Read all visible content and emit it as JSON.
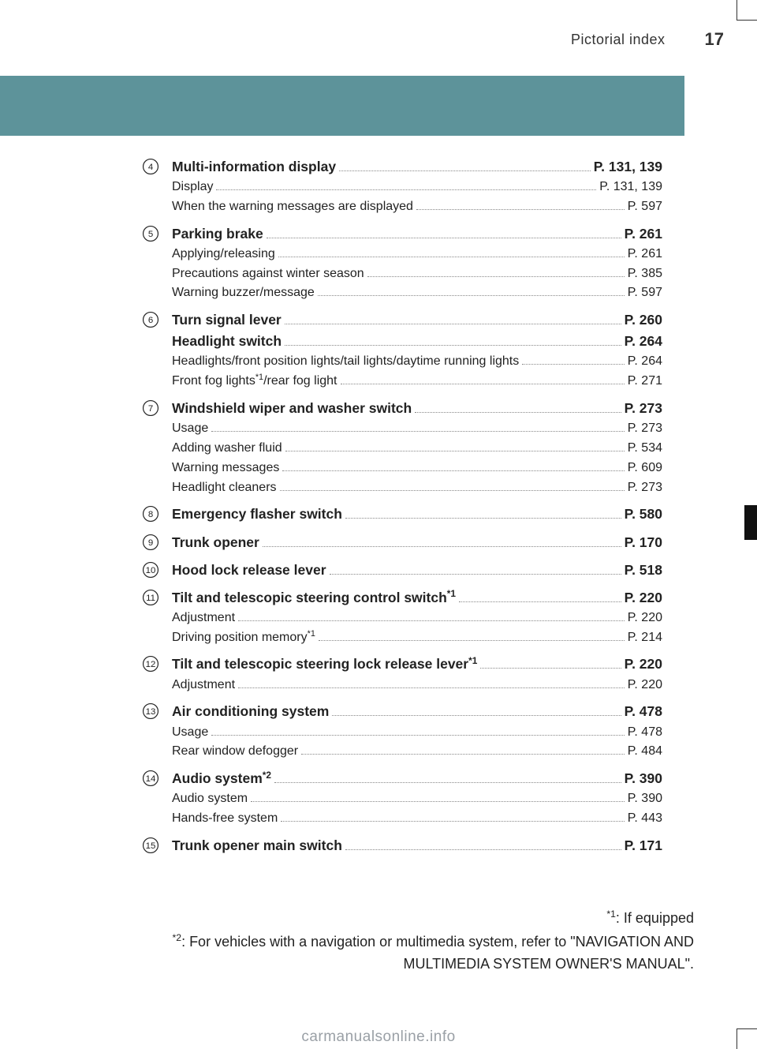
{
  "colors": {
    "teal": "#5d939a",
    "text": "#222222",
    "leader": "#888888",
    "watermark": "#9aa0a6",
    "black": "#111111"
  },
  "header": {
    "section": "Pictorial index",
    "page": "17"
  },
  "items": [
    {
      "num": 4,
      "lines": [
        {
          "main": true,
          "label": "Multi-information display ",
          "page": "P. 131, 139"
        },
        {
          "label": "Display ",
          "page": "P. 131, 139"
        },
        {
          "label": "When the warning messages are displayed",
          "page": " P. 597"
        }
      ]
    },
    {
      "num": 5,
      "lines": [
        {
          "main": true,
          "label": "Parking brake ",
          "page": " P. 261"
        },
        {
          "label": "Applying/releasing ",
          "page": " P. 261"
        },
        {
          "label": "Precautions against winter season ",
          "page": " P. 385"
        },
        {
          "label": "Warning buzzer/message",
          "page": " P. 597"
        }
      ]
    },
    {
      "num": 6,
      "lines": [
        {
          "main": true,
          "label": "Turn signal lever ",
          "page": "P. 260"
        },
        {
          "main": true,
          "label": "Headlight switch",
          "page": "P. 264"
        },
        {
          "label": "Headlights/front position lights/tail lights/daytime running lights ",
          "page": " P. 264"
        },
        {
          "label": "Front fog lights",
          "sup_after_label": "*1",
          "label2": "/rear fog light ",
          "page": " P. 271"
        }
      ]
    },
    {
      "num": 7,
      "lines": [
        {
          "main": true,
          "label": "Windshield wiper and washer switch ",
          "page": "P. 273"
        },
        {
          "label": "Usage ",
          "page": "P. 273"
        },
        {
          "label": "Adding washer fluid ",
          "page": " P. 534"
        },
        {
          "label": "Warning messages ",
          "page": " P. 609"
        },
        {
          "label": "Headlight cleaners ",
          "page": "P. 273"
        }
      ]
    },
    {
      "num": 8,
      "lines": [
        {
          "main": true,
          "label": "Emergency flasher switch",
          "page": " P. 580"
        }
      ]
    },
    {
      "num": 9,
      "lines": [
        {
          "main": true,
          "label": "Trunk opener ",
          "page": " P. 170"
        }
      ]
    },
    {
      "num": 10,
      "lines": [
        {
          "main": true,
          "label": "Hood lock release lever",
          "page": " P. 518"
        }
      ]
    },
    {
      "num": 11,
      "lines": [
        {
          "main": true,
          "label": "Tilt and telescopic steering control switch",
          "sup_after_label": "*1",
          "label2": " ",
          "page": "P. 220"
        },
        {
          "label": "Adjustment ",
          "page": " P. 220"
        },
        {
          "label": "Driving position memory",
          "sup_after_label": "*1",
          "label2": " ",
          "page": " P. 214"
        }
      ]
    },
    {
      "num": 12,
      "lines": [
        {
          "main": true,
          "label": "Tilt and telescopic steering lock release lever",
          "sup_after_label": "*1",
          "label2": " ",
          "page": "P. 220"
        },
        {
          "label": "Adjustment ",
          "page": " P. 220"
        }
      ]
    },
    {
      "num": 13,
      "lines": [
        {
          "main": true,
          "label": "Air conditioning system ",
          "page": "P. 478"
        },
        {
          "label": "Usage ",
          "page": " P. 478"
        },
        {
          "label": "Rear window defogger ",
          "page": " P. 484"
        }
      ]
    },
    {
      "num": 14,
      "lines": [
        {
          "main": true,
          "label": "Audio system",
          "sup_after_label": "*2",
          "label2": " ",
          "page": "P. 390"
        },
        {
          "label": "Audio system ",
          "page": " P. 390"
        },
        {
          "label": "Hands-free system ",
          "page": " P. 443"
        }
      ]
    },
    {
      "num": 15,
      "lines": [
        {
          "main": true,
          "label": "Trunk opener main switch",
          "page": " P. 171"
        }
      ]
    }
  ],
  "footnotes": {
    "f1_mark": "*1",
    "f1_text": ": If equipped",
    "f2_mark": "*2",
    "f2_text": ": For vehicles with a navigation or multimedia system, refer to \"NAVIGATION AND MULTIMEDIA SYSTEM OWNER'S MANUAL\"."
  },
  "watermark": "carmanualsonline.info"
}
